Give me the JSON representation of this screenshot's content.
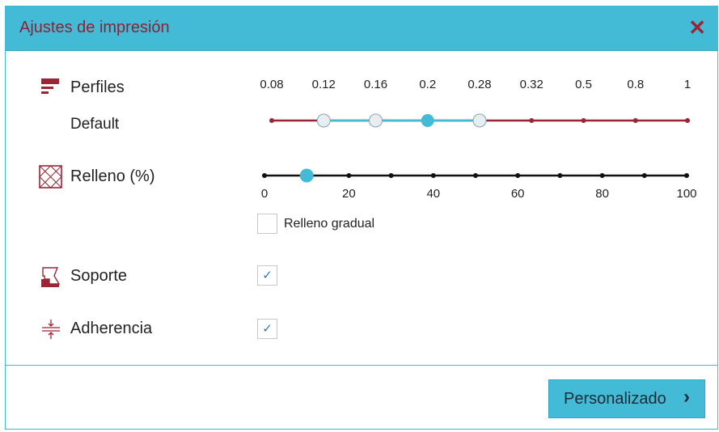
{
  "dialog": {
    "title": "Ajustes de impresión",
    "close_icon": "close-icon"
  },
  "profiles": {
    "label": "Perfiles",
    "current": "Default",
    "icon": "profiles-icon",
    "ticks": [
      "0.08",
      "0.12",
      "0.16",
      "0.2",
      "0.28",
      "0.32",
      "0.5",
      "0.8",
      "1"
    ],
    "selected": "0.2",
    "available": [
      "0.12",
      "0.16",
      "0.2",
      "0.28"
    ],
    "color_inactive": "#9b2535",
    "color_active": "#43bbd7"
  },
  "infill": {
    "label": "Relleno (%)",
    "icon": "infill-icon",
    "ticks": [
      "0",
      "20",
      "40",
      "60",
      "80",
      "100"
    ],
    "value": 10,
    "gradual_label": "Relleno gradual",
    "gradual_checked": false
  },
  "support": {
    "label": "Soporte",
    "icon": "support-icon",
    "checked": true
  },
  "adhesion": {
    "label": "Adherencia",
    "icon": "adhesion-icon",
    "checked": true
  },
  "footer": {
    "button_label": "Personalizado",
    "button_icon": "chevron-right-icon"
  }
}
